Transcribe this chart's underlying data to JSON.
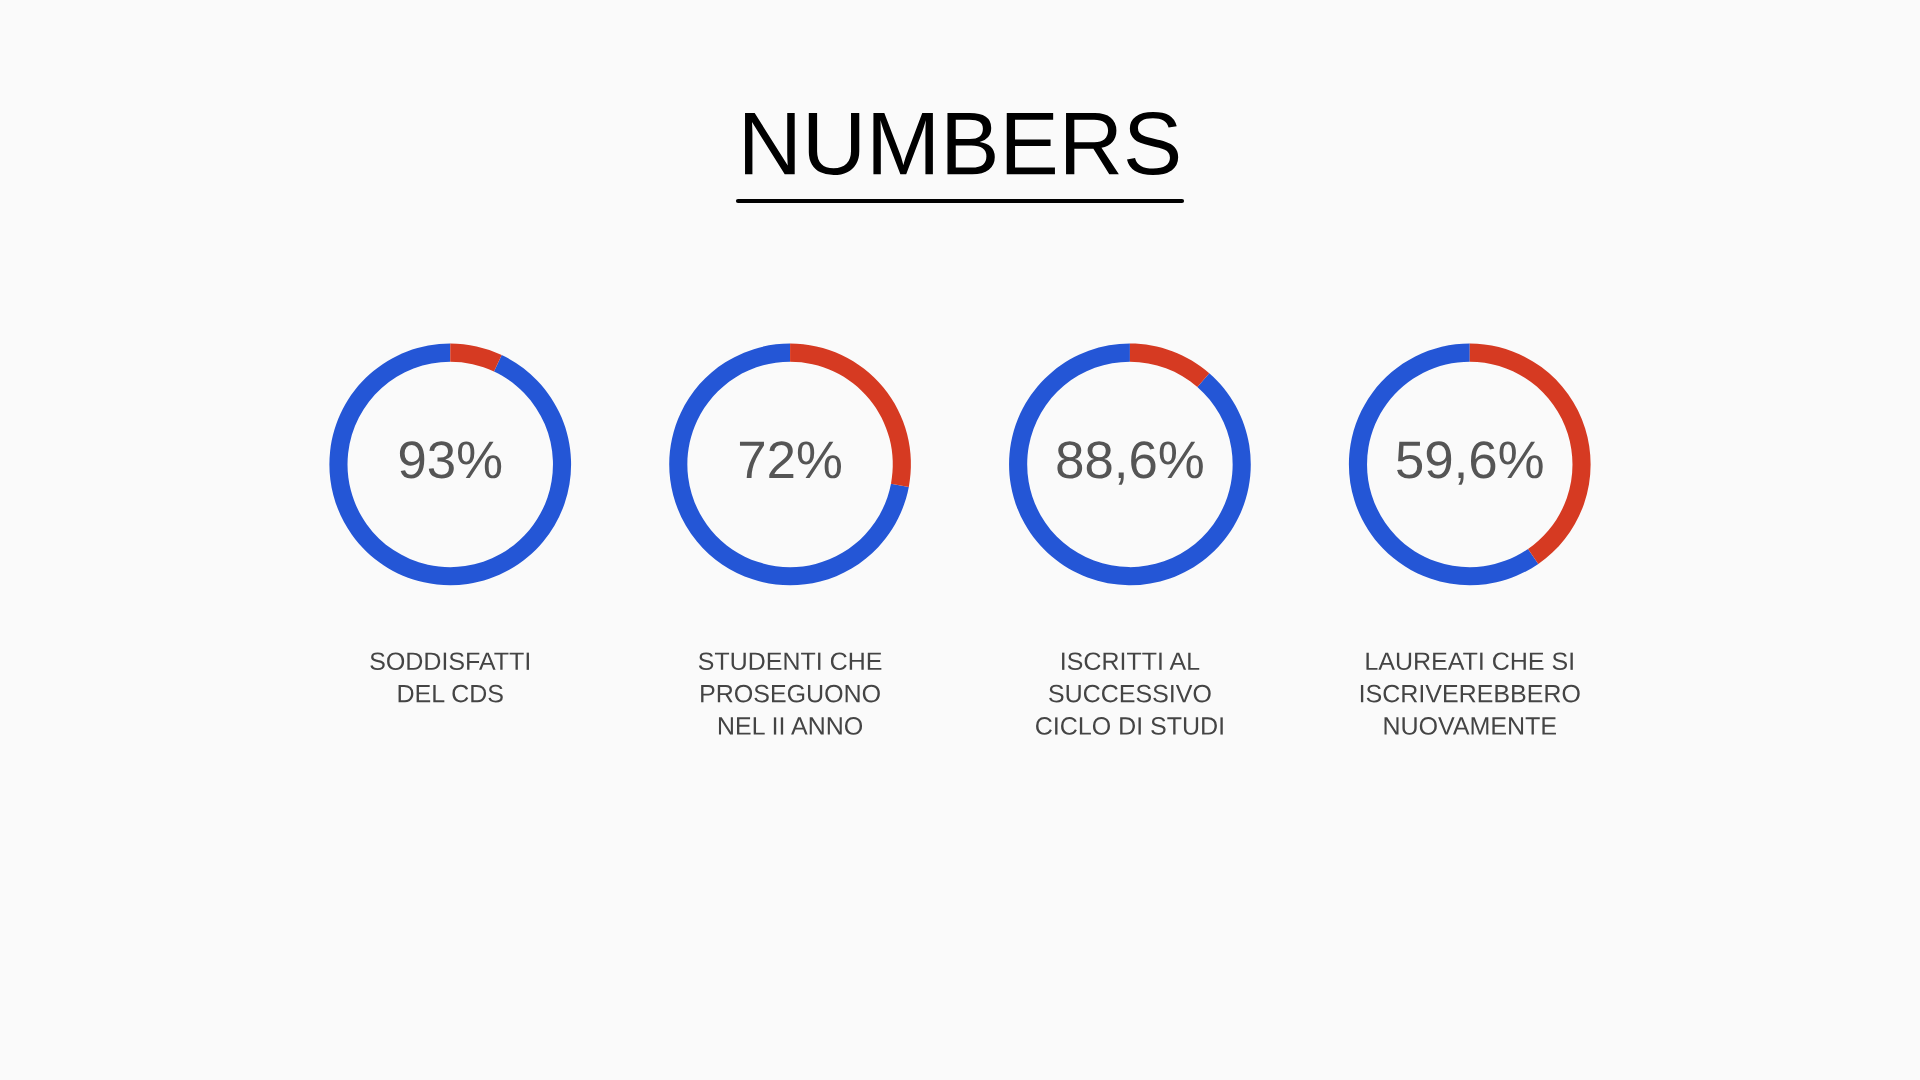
{
  "chart_data": [
    {
      "type": "other",
      "title": "NUMBERS"
    },
    {
      "type": "donut",
      "categories": [
        null,
        null
      ],
      "values": [
        93,
        7
      ],
      "colors": [
        "#2456d6",
        "#d63a22"
      ],
      "value_labels": [
        "93%",
        null
      ],
      "xlabel": "SODDISFATTI\nDEL CDS"
    },
    {
      "type": "donut",
      "categories": [
        null,
        null
      ],
      "values": [
        72,
        28
      ],
      "colors": [
        "#2456d6",
        "#d63a22"
      ],
      "value_labels": [
        "72%",
        null
      ],
      "xlabel": "STUDENTI CHE\nPROSEGUONO\nNEL II ANNO"
    },
    {
      "type": "donut",
      "categories": [
        null,
        null
      ],
      "values": [
        88.6,
        11.4
      ],
      "colors": [
        "#2456d6",
        "#d63a22"
      ],
      "value_labels": [
        "88,6%",
        null
      ],
      "xlabel": "ISCRITTI AL\nSUCCESSIVO\nCICLO DI STUDI"
    },
    {
      "type": "donut",
      "categories": [
        null,
        null
      ],
      "values": [
        59.6,
        40.4
      ],
      "colors": [
        "#2456d6",
        "#d63a22"
      ],
      "value_labels": [
        "59,6%",
        null
      ],
      "xlabel": "LAUREATI CHE SI\nISCRIVEREBBERO\nNUOVAMENTE"
    }
  ]
}
